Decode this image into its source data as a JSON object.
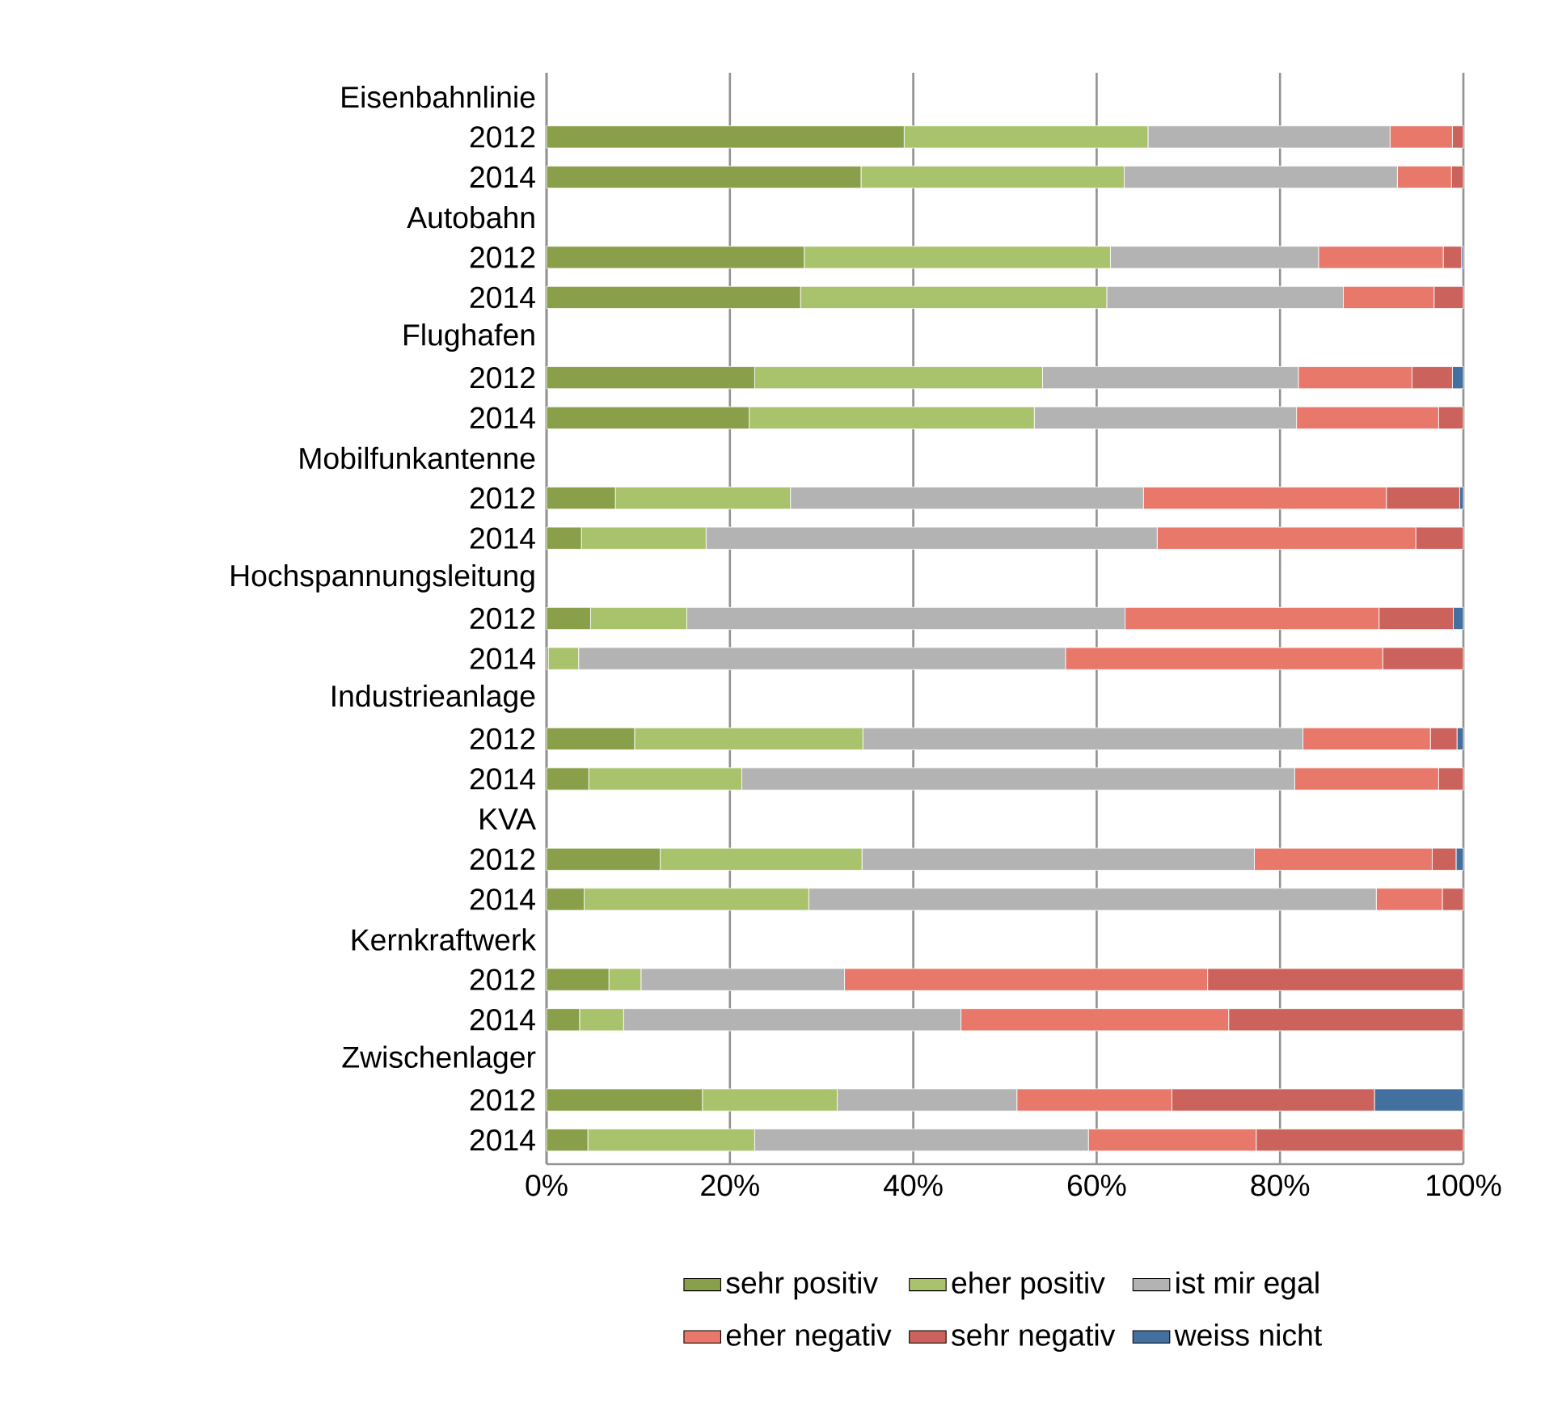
{
  "chart_data": {
    "type": "bar",
    "orientation": "horizontal",
    "stacked": true,
    "categories": [
      "Eisenbahnlinie",
      "2012",
      "2014",
      "Autobahn",
      "2012",
      "2014",
      "Flughafen",
      "2012",
      "2014",
      "Mobilfunkantenne",
      "2012",
      "2014",
      "Hochspannungsleitung",
      "2012",
      "2014",
      "Industrieanlage",
      "2012",
      "2014",
      "KVA",
      "2012",
      "2014",
      "Kernkraftwerk",
      "2012",
      "2014",
      "Zwischenlager",
      "2012",
      "2014"
    ],
    "series": [
      {
        "name": "sehr positiv",
        "color": "#8a9f4a",
        "values": [
          null,
          39.0,
          34.3,
          null,
          28.1,
          27.7,
          null,
          22.7,
          22.1,
          null,
          7.5,
          3.8,
          null,
          4.8,
          0.2,
          null,
          9.6,
          4.6,
          null,
          12.4,
          4.1,
          null,
          6.8,
          3.6,
          null,
          17.0,
          4.5
        ]
      },
      {
        "name": "eher positiv",
        "color": "#a8c36b",
        "values": [
          null,
          26.6,
          28.7,
          null,
          33.4,
          33.4,
          null,
          31.4,
          31.1,
          null,
          19.1,
          13.6,
          null,
          10.5,
          3.3,
          null,
          24.9,
          16.7,
          null,
          22.0,
          24.5,
          null,
          3.5,
          4.8,
          null,
          14.7,
          18.2
        ]
      },
      {
        "name": "ist mir egal",
        "color": "#b3b3b3",
        "values": [
          null,
          26.4,
          29.8,
          null,
          22.7,
          25.8,
          null,
          27.9,
          28.6,
          null,
          38.5,
          49.2,
          null,
          47.8,
          53.1,
          null,
          48.0,
          60.3,
          null,
          42.8,
          61.9,
          null,
          22.2,
          36.8,
          null,
          19.6,
          36.4
        ]
      },
      {
        "name": "eher negativ",
        "color": "#e8786a",
        "values": [
          null,
          6.8,
          5.9,
          null,
          13.6,
          9.9,
          null,
          12.4,
          15.5,
          null,
          26.5,
          28.2,
          null,
          27.7,
          34.6,
          null,
          13.9,
          15.7,
          null,
          19.4,
          7.2,
          null,
          39.6,
          29.2,
          null,
          16.9,
          18.3
        ]
      },
      {
        "name": "sehr negativ",
        "color": "#cb635c",
        "values": [
          null,
          1.2,
          1.3,
          null,
          2.0,
          3.2,
          null,
          4.4,
          2.7,
          null,
          8.0,
          5.2,
          null,
          8.1,
          8.8,
          null,
          2.9,
          2.7,
          null,
          2.6,
          2.3,
          null,
          27.9,
          25.6,
          null,
          22.1,
          22.6
        ]
      },
      {
        "name": "weiss nicht",
        "color": "#4470a0",
        "values": [
          null,
          null,
          null,
          null,
          0.2,
          null,
          null,
          1.2,
          null,
          null,
          0.4,
          null,
          null,
          1.1,
          null,
          null,
          0.7,
          null,
          null,
          0.8,
          null,
          null,
          null,
          null,
          null,
          9.7,
          null
        ]
      }
    ],
    "xlim": [
      0,
      100
    ],
    "xticks": [
      {
        "value": 0,
        "label": "0%"
      },
      {
        "value": 20,
        "label": "20%"
      },
      {
        "value": 40,
        "label": "40%"
      },
      {
        "value": 60,
        "label": "60%"
      },
      {
        "value": 80,
        "label": "80%"
      },
      {
        "value": 100,
        "label": "100%"
      }
    ],
    "grid": "x",
    "legend": "bottom"
  }
}
